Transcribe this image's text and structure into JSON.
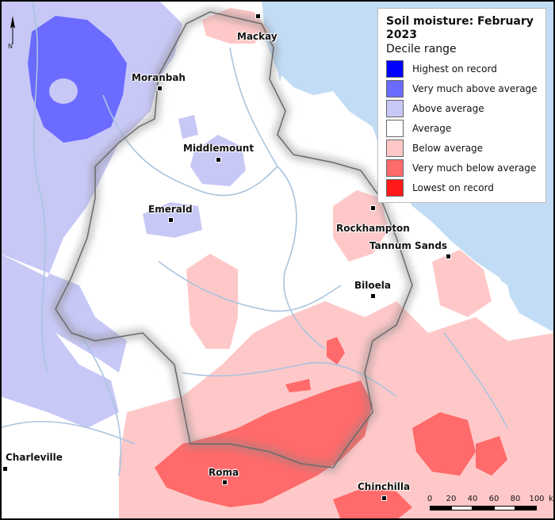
{
  "legend": {
    "title": "Soil moisture: February 2023",
    "subtitle": "Decile range",
    "items": [
      {
        "label": "Highest on record",
        "color": "#0000ff"
      },
      {
        "label": "Very much above average",
        "color": "#6b6bff"
      },
      {
        "label": "Above average",
        "color": "#c8c8f7"
      },
      {
        "label": "Average",
        "color": "#ffffff"
      },
      {
        "label": "Below average",
        "color": "#ffc8c8"
      },
      {
        "label": "Very much below average",
        "color": "#ff6a6a"
      },
      {
        "label": "Lowest on record",
        "color": "#ff1a1a"
      }
    ]
  },
  "towns": [
    {
      "name": "Mackay"
    },
    {
      "name": "Moranbah"
    },
    {
      "name": "Middlemount"
    },
    {
      "name": "Emerald"
    },
    {
      "name": "Rockhampton"
    },
    {
      "name": "Tannum Sands"
    },
    {
      "name": "Biloela"
    },
    {
      "name": "Charleville"
    },
    {
      "name": "Roma"
    },
    {
      "name": "Chinchilla"
    }
  ],
  "north_arrow": {
    "label": "N"
  },
  "scale_bar": {
    "ticks": [
      "0",
      "20",
      "40",
      "60",
      "80",
      "100"
    ],
    "unit": "km"
  },
  "colors": {
    "ocean": "#c2dcf5",
    "river": "#a9c4de",
    "boundary": "#6a6a6a"
  }
}
